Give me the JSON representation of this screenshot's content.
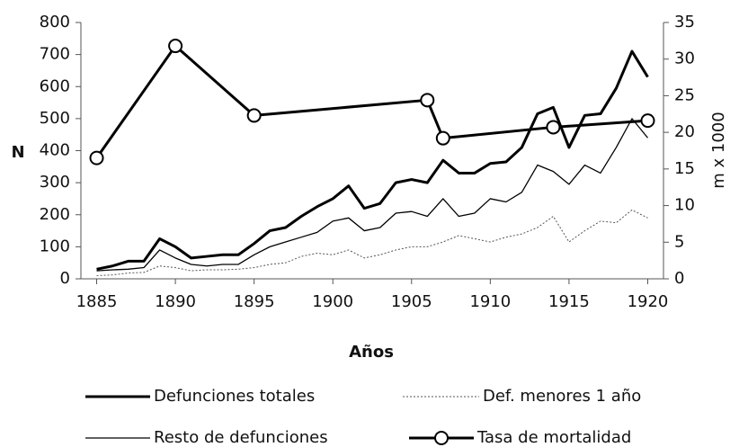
{
  "chart_data": {
    "type": "line",
    "xlabel": "Años",
    "ylabel": "N",
    "y2label": "m x 1000",
    "x": [
      1885,
      1886,
      1887,
      1888,
      1889,
      1890,
      1891,
      1892,
      1893,
      1894,
      1895,
      1896,
      1897,
      1898,
      1899,
      1900,
      1901,
      1902,
      1903,
      1904,
      1905,
      1906,
      1907,
      1908,
      1909,
      1910,
      1911,
      1912,
      1913,
      1914,
      1915,
      1916,
      1917,
      1918,
      1919,
      1920
    ],
    "series": [
      {
        "name": "Defunciones totales",
        "color": "#000000",
        "line_width": 3,
        "style": "solid",
        "values": [
          30,
          40,
          55,
          55,
          125,
          100,
          65,
          70,
          75,
          75,
          110,
          150,
          160,
          195,
          225,
          250,
          290,
          220,
          235,
          300,
          310,
          300,
          370,
          330,
          330,
          360,
          365,
          410,
          515,
          535,
          410,
          510,
          515,
          595,
          710,
          630
        ]
      },
      {
        "name": "Def. menores 1 año",
        "color": "#555555",
        "line_width": 1,
        "style": "dotted",
        "values": [
          10,
          12,
          18,
          20,
          40,
          35,
          25,
          28,
          28,
          30,
          35,
          45,
          50,
          70,
          80,
          75,
          90,
          65,
          75,
          90,
          100,
          100,
          115,
          135,
          125,
          115,
          130,
          140,
          160,
          195,
          115,
          150,
          180,
          175,
          215,
          190
        ]
      },
      {
        "name": "Resto de defunciones",
        "color": "#000000",
        "line_width": 1.3,
        "style": "solid",
        "values": [
          25,
          28,
          30,
          35,
          90,
          65,
          45,
          40,
          45,
          45,
          75,
          100,
          115,
          130,
          145,
          180,
          190,
          150,
          160,
          205,
          210,
          195,
          250,
          195,
          205,
          250,
          240,
          270,
          355,
          335,
          295,
          355,
          330,
          410,
          500,
          440
        ]
      },
      {
        "name": "Tasa de mortalidad",
        "color": "#000000",
        "line_width": 3,
        "style": "solid",
        "marker": "circle",
        "axis": "y2",
        "x": [
          1885,
          1890,
          1895,
          1906,
          1907,
          1914,
          1920
        ],
        "values": [
          16.5,
          31.8,
          22.3,
          24.4,
          19.2,
          20.7,
          21.6
        ]
      }
    ],
    "xlim": [
      1884,
      1921
    ],
    "xticks": [
      1885,
      1890,
      1895,
      1900,
      1905,
      1910,
      1915,
      1920
    ],
    "ylim": [
      0,
      800
    ],
    "yticks": [
      0,
      100,
      200,
      300,
      400,
      500,
      600,
      700,
      800
    ],
    "y2lim": [
      0,
      35
    ],
    "y2ticks": [
      0,
      5,
      10,
      15,
      20,
      25,
      30,
      35
    ]
  }
}
